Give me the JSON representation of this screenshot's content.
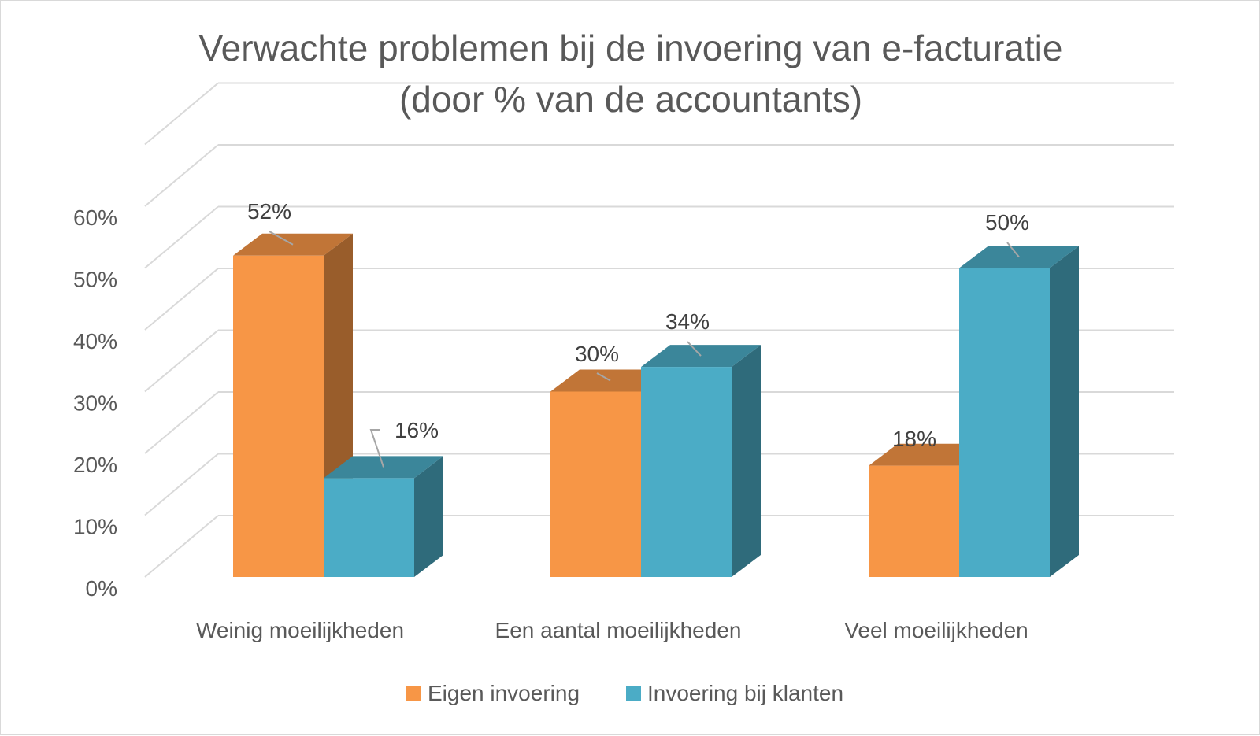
{
  "chart_data": {
    "type": "bar",
    "title_lines": [
      "Verwachte problemen bij de invoering van e-facturatie",
      "(door % van de accountants)"
    ],
    "categories": [
      "Weinig moeilijkheden",
      "Een aantal moeilijkheden",
      "Veel moeilijkheden"
    ],
    "series": [
      {
        "name": "Eigen invoering",
        "values": [
          52,
          30,
          18
        ],
        "labels": [
          "52%",
          "30%",
          "18%"
        ],
        "color": "#F79646"
      },
      {
        "name": "Invoering bij klanten",
        "values": [
          16,
          34,
          50
        ],
        "labels": [
          "16%",
          "34%",
          "50%"
        ],
        "color": "#4BACC6"
      }
    ],
    "y_ticks": [
      "0%",
      "10%",
      "20%",
      "30%",
      "40%",
      "50%",
      "60%"
    ],
    "ylim": [
      0,
      60
    ],
    "grid": true,
    "three_d": true,
    "legend_position": "bottom"
  }
}
